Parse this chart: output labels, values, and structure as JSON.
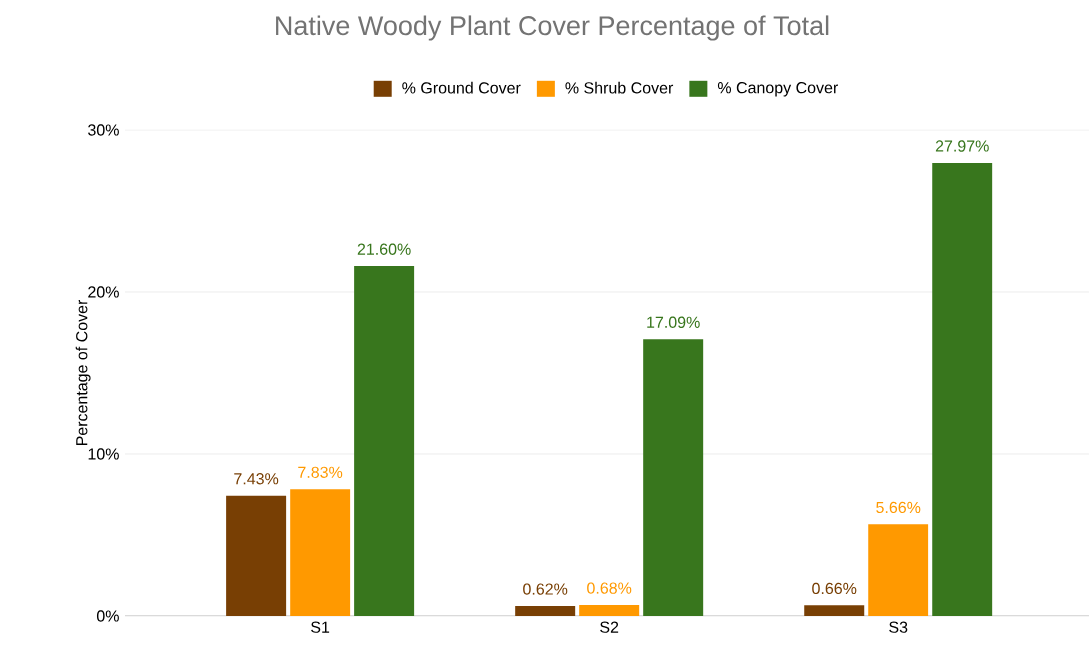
{
  "chart_data": {
    "type": "bar",
    "title": "Native Woody Plant Cover Percentage of Total",
    "ylabel": "Percentage of Cover",
    "categories": [
      "S1",
      "S2",
      "S3"
    ],
    "series": [
      {
        "name": "% Ground Cover",
        "color": "#783f04",
        "values": [
          7.43,
          0.62,
          0.66
        ],
        "value_labels": [
          "7.43%",
          "0.62%",
          "0.66%"
        ]
      },
      {
        "name": "% Shrub Cover",
        "color": "#ff9900",
        "values": [
          7.83,
          0.68,
          5.66
        ],
        "value_labels": [
          "7.83%",
          "0.68%",
          "5.66%"
        ]
      },
      {
        "name": "% Canopy Cover",
        "color": "#38761d",
        "values": [
          21.6,
          17.09,
          27.97
        ],
        "value_labels": [
          "21.60%",
          "17.09%",
          "27.97%"
        ]
      }
    ],
    "ylim": [
      0,
      30
    ],
    "yticks": [
      {
        "value": 0,
        "label": "0%"
      },
      {
        "value": 10,
        "label": "10%"
      },
      {
        "value": 20,
        "label": "20%"
      },
      {
        "value": 30,
        "label": "30%"
      }
    ],
    "grid": "y",
    "legend": "top"
  }
}
